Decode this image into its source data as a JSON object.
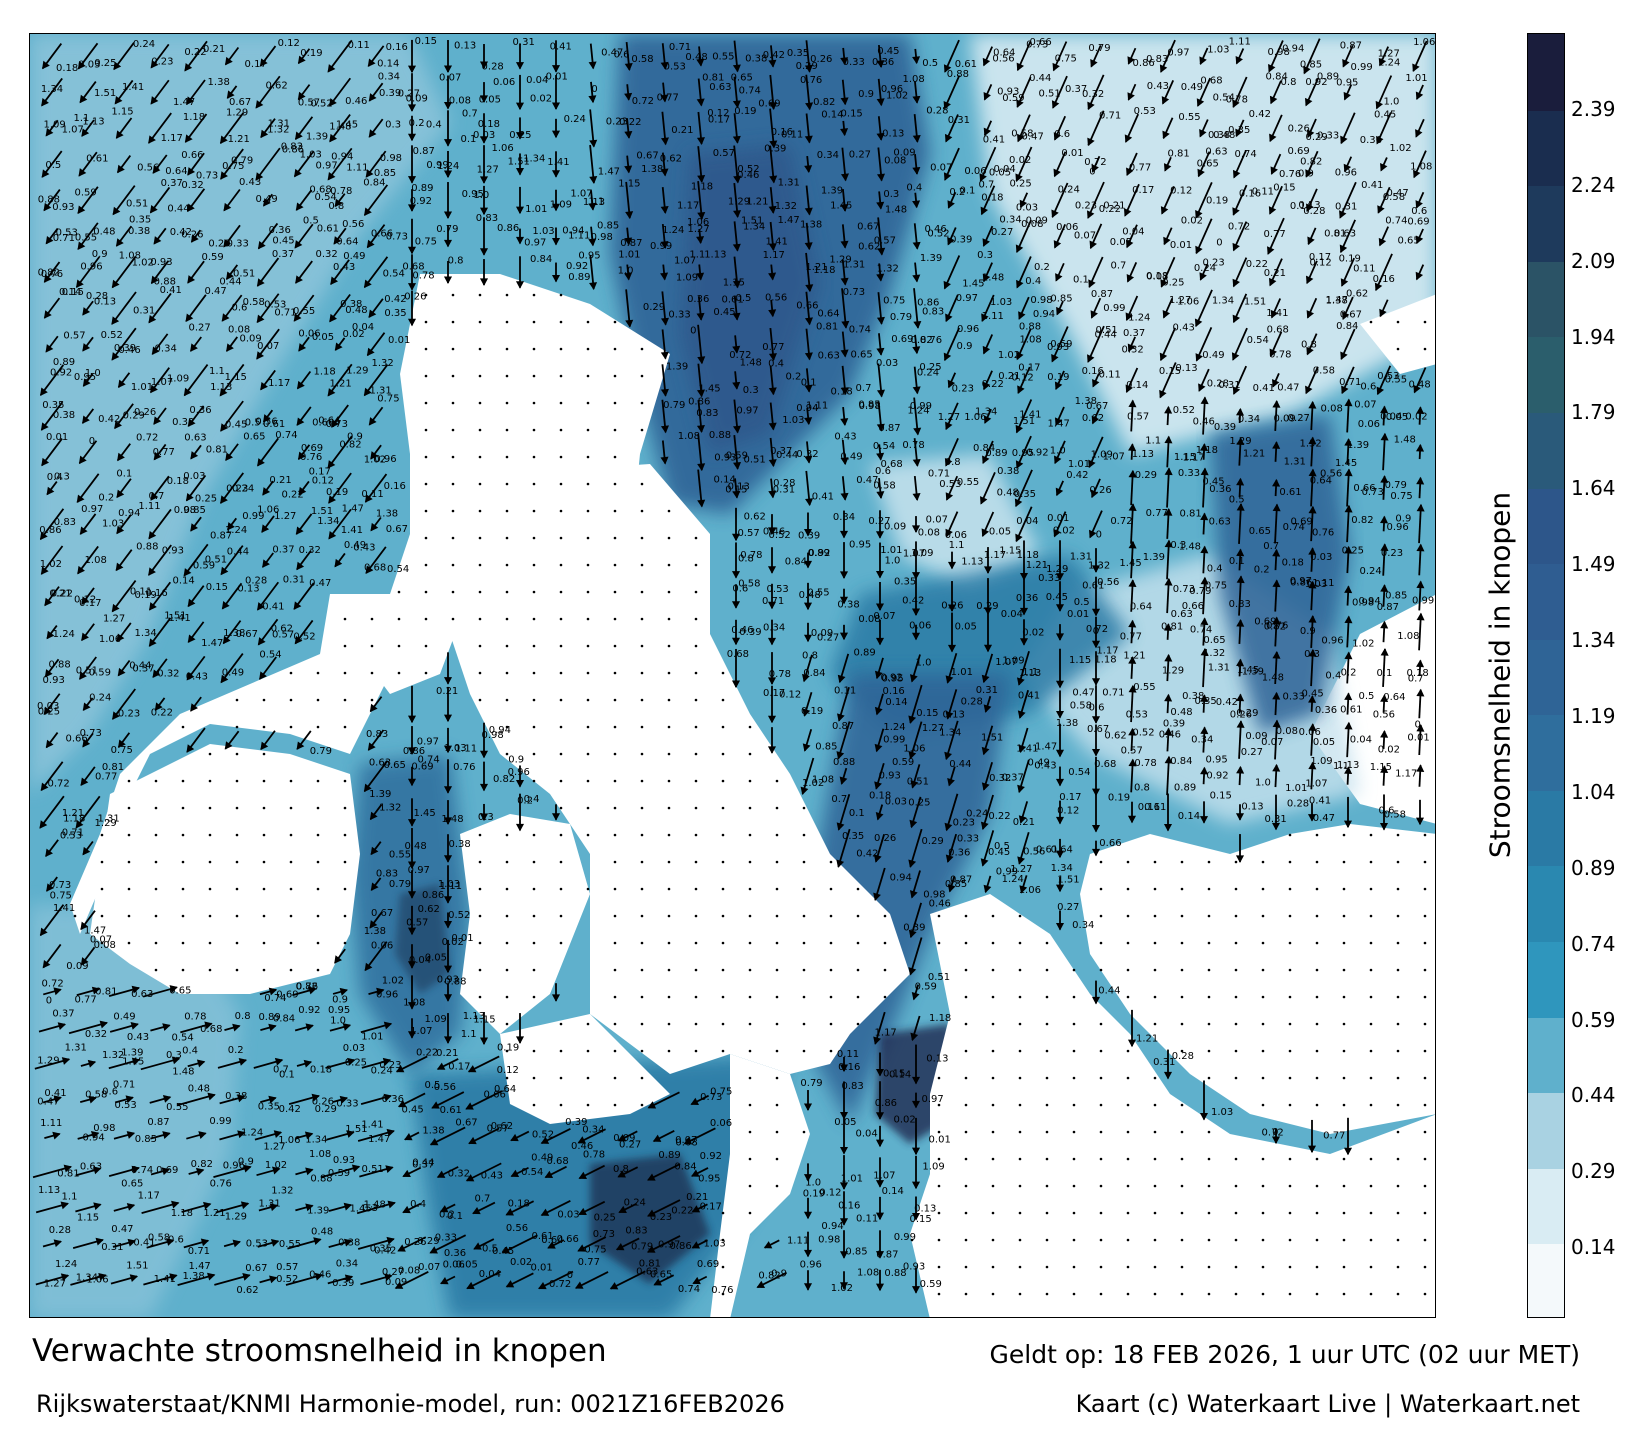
{
  "map": {
    "title": "Verwachte stroomsnelheid in knopen",
    "subtitle": "Rijkswaterstaat/KNMI Harmonie-model, run: 0021Z16FEB2026",
    "valid_time": "Geldt op: 18 FEB 2026, 1 uur UTC (02 uur MET)",
    "credit": "Kaart (c) Waterkaart Live | Waterkaart.net",
    "unit": "knopen"
  },
  "colorbar": {
    "label": "Stroomsnelheid in knopen",
    "ticks": [
      "0.14",
      "0.29",
      "0.44",
      "0.59",
      "0.74",
      "0.89",
      "1.04",
      "1.19",
      "1.34",
      "1.49",
      "1.64",
      "1.79",
      "1.94",
      "2.09",
      "2.24",
      "2.39"
    ],
    "tick_values": [
      0.14,
      0.29,
      0.44,
      0.59,
      0.74,
      0.89,
      1.04,
      1.19,
      1.34,
      1.49,
      1.64,
      1.79,
      1.94,
      2.09,
      2.24,
      2.39
    ],
    "range": [
      0,
      2.54
    ],
    "band_colors": [
      "#f4f9fb",
      "#d9ecf3",
      "#a9d2e2",
      "#5fb0cc",
      "#2f96bd",
      "#2a88b0",
      "#2a7aa5",
      "#2f6e9d",
      "#2f6496",
      "#2f5d91",
      "#2d568a",
      "#2a5a7a",
      "#2b5e6c",
      "#2b5366",
      "#1e3a5c",
      "#1a2d4f",
      "#1a1d3c"
    ]
  },
  "colors": {
    "land": "#ffffff",
    "sea_low": "#cfe6f0",
    "sea_mid": "#3a97c3",
    "sea_high": "#2a5c98",
    "sea_peak": "#1c2348",
    "arrow": "#000000"
  },
  "current_speed_labels": [
    "0.18",
    "0.03",
    "0.25",
    "0.24",
    "0.23",
    "0.22",
    "0.21",
    "0.17",
    "0.12",
    "0.19",
    "0.11",
    "0.16",
    "0.14",
    "0.15",
    "0.13",
    "0.28",
    "0.31",
    "0.41",
    "0.47",
    "0.58",
    "0.6",
    "0.71",
    "0.53",
    "0.55",
    "0.48",
    "0.38",
    "0.35",
    "0.42",
    "0.26",
    "0.29",
    "0.33",
    "0.36",
    "0.45",
    "0.5",
    "0.61",
    "0.56",
    "0.64",
    "0.66",
    "0.73",
    "0.75",
    "0.79",
    "0.83",
    "0.86",
    "0.97",
    "1.03",
    "1.11",
    "0.94",
    "0.98",
    "0.85",
    "0.87",
    "0.99",
    "1.24",
    "1.27",
    "1.06",
    "1.34",
    "1.51",
    "1.41",
    "1.47",
    "1.38",
    "0.67",
    "0.62",
    "0.57",
    "0.52",
    "0.46",
    "0.39",
    "0.34",
    "0.27",
    "0.09",
    "0.08",
    "0.07",
    "0.06",
    "0.05",
    "0.04",
    "0.02",
    "0.01",
    "0",
    "0.72",
    "0.77",
    "0.81",
    "0.63",
    "0.65",
    "0.74",
    "0.69",
    "0.76",
    "0.82",
    "0.9",
    "0.96",
    "1.02",
    "1.08",
    "0.88",
    "0.93",
    "0.59",
    "0.51",
    "0.44",
    "0.37",
    "0.32",
    "0.43",
    "0.49",
    "0.54",
    "0.68",
    "0.78",
    "0.8",
    "0.84",
    "0.89",
    "0.92",
    "0.95",
    "1.0",
    "1.01",
    "1.07",
    "1.09",
    "1.1",
    "1.13",
    "1.15",
    "1.17",
    "1.18",
    "1.21",
    "1.29",
    "1.31",
    "1.32",
    "1.39",
    "1.45",
    "1.48",
    "0.3",
    "0.4",
    "0.2",
    "0.1",
    "0.7"
  ]
}
